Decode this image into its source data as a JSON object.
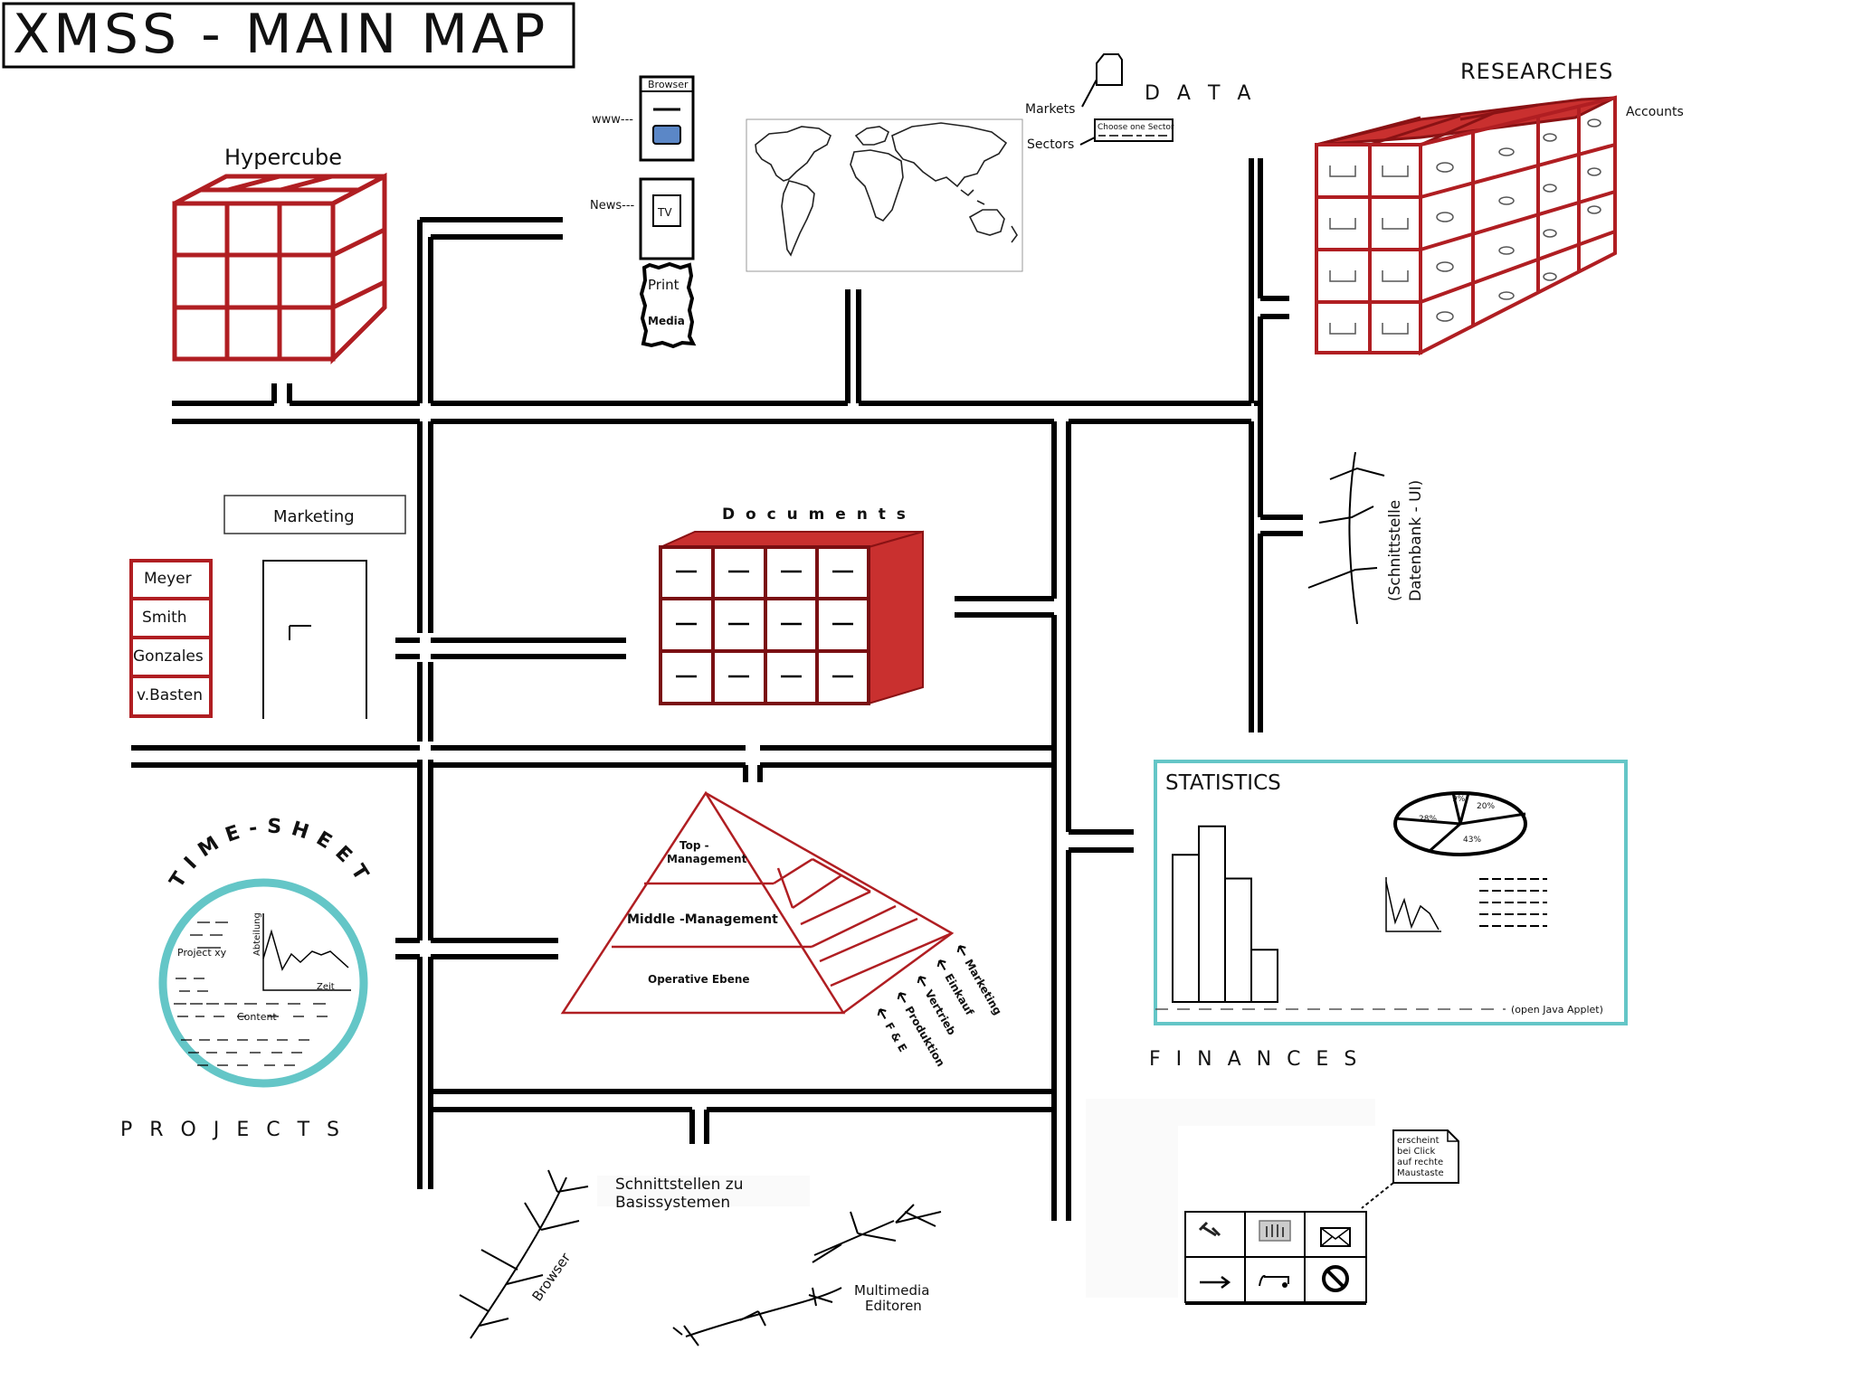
{
  "title": "XMSS - MAIN MAP",
  "hypercube": {
    "label": "Hypercube"
  },
  "data": {
    "label": "D A T A",
    "markets": "Markets",
    "sectors": "Sectors",
    "sector_placeholder": "Choose one Sector"
  },
  "media": {
    "browser": "Browser",
    "www": "www---",
    "news": "News---",
    "tv": "TV",
    "print": "Print",
    "print2": "Media"
  },
  "researches": {
    "label": "RESEARCHES",
    "accounts": "Accounts"
  },
  "interface_db": {
    "line1": "(Schnittstelle",
    "line2": "Datenbank - UI)"
  },
  "marketing": {
    "label": "Marketing",
    "people": [
      "Meyer",
      "Smith",
      "Gonzales",
      "v.Basten"
    ]
  },
  "documents": {
    "label": "D o c u m e n t s"
  },
  "pyramid": {
    "levels": [
      "Top -",
      "Management",
      "Middle -Management",
      "Operative Ebene"
    ],
    "departments": [
      "Marketing",
      "Einkauf",
      "Vertrieb",
      "Produktion",
      "F & E"
    ]
  },
  "statistics": {
    "label": "STATISTICS",
    "applet_note": "(open Java Applet)",
    "pie_labels": [
      "9%",
      "20%",
      "28%",
      "43%"
    ],
    "bars": [
      62,
      74,
      52,
      22
    ]
  },
  "finances": {
    "label": "F I N A N C E S"
  },
  "timesheet": {
    "arc": "TIME-SHEET",
    "project": "Project xy",
    "axis_y": "Abteilung",
    "axis_x": "Zeit",
    "content": "Content"
  },
  "projects": {
    "label": "P R O J E C T S"
  },
  "interfaces": {
    "line1": "Schnittstellen zu",
    "line2": "Basissystemen",
    "browser": "Browser",
    "multimedia1": "Multimedia",
    "multimedia2": "Editoren"
  },
  "toolbox": {
    "note": [
      "erscheint",
      "bei Click",
      "auf rechte",
      "Maustaste"
    ],
    "tools": [
      "wrench-icon",
      "hand-icon",
      "mail-icon",
      "arrow-icon",
      "music-icon",
      "forbidden-icon"
    ]
  }
}
